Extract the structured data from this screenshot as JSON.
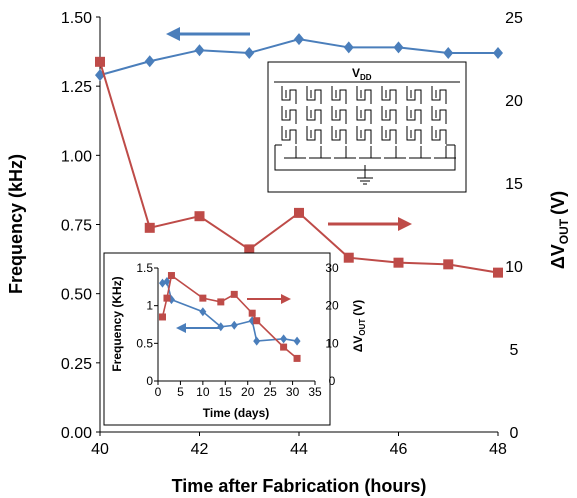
{
  "chart_data": [
    {
      "type": "line",
      "xlabel": "Time after Fabrication (hours)",
      "ylabel": "Frequency (kHz)",
      "y2label": "ΔV",
      "y2label_sub": "OUT",
      "y2label_unit": "(V)",
      "xlim": [
        40,
        48
      ],
      "ylim": [
        0,
        1.5
      ],
      "y2lim": [
        0,
        25
      ],
      "xticks": [
        "40",
        "42",
        "44",
        "46",
        "48"
      ],
      "yticks": [
        "0.00",
        "0.25",
        "0.50",
        "0.75",
        "1.00",
        "1.25",
        "1.50"
      ],
      "y2ticks": [
        "0",
        "5",
        "10",
        "15",
        "20",
        "25"
      ],
      "series": [
        {
          "axis": "left",
          "color": "#4a7ebb",
          "marker": "diamond",
          "x": [
            40,
            41,
            42,
            43,
            44,
            45,
            46,
            47,
            48
          ],
          "values": [
            1.29,
            1.34,
            1.38,
            1.37,
            1.42,
            1.39,
            1.39,
            1.37,
            1.37
          ]
        },
        {
          "axis": "right",
          "color": "#be4b48",
          "marker": "square",
          "x": [
            40,
            41,
            42,
            43,
            44,
            45,
            46,
            47,
            48
          ],
          "values": [
            22.3,
            12.3,
            13.0,
            11.0,
            13.2,
            10.5,
            10.2,
            10.1,
            9.6
          ]
        }
      ],
      "annotations": [
        {
          "type": "arrow",
          "direction": "left",
          "color": "#4a7ebb",
          "meaning": "frequency series uses left axis"
        },
        {
          "type": "arrow",
          "direction": "right",
          "color": "#be4b48",
          "meaning": "voltage series uses right axis"
        }
      ],
      "inset_schematic": {
        "label": "V",
        "label_sub": "DD"
      }
    },
    {
      "type": "line",
      "inset": true,
      "xlabel": "Time (days)",
      "ylabel": "Frequency (KHz)",
      "y2label": "ΔV",
      "y2label_sub": "OUT",
      "y2label_unit": "(V)",
      "xlim": [
        0,
        35
      ],
      "ylim": [
        0,
        1.5
      ],
      "y2lim": [
        0,
        30
      ],
      "xticks": [
        "0",
        "5",
        "10",
        "15",
        "20",
        "25",
        "30",
        "35"
      ],
      "yticks": [
        "0",
        "0.5",
        "1",
        "1.5"
      ],
      "y2ticks": [
        "0",
        "10",
        "20",
        "30"
      ],
      "series": [
        {
          "axis": "left",
          "color": "#4a7ebb",
          "marker": "diamond",
          "x": [
            1,
            2,
            3,
            10,
            14,
            17,
            21,
            22,
            28,
            31
          ],
          "values": [
            1.3,
            1.32,
            1.08,
            0.92,
            0.72,
            0.74,
            0.8,
            0.53,
            0.56,
            0.53
          ]
        },
        {
          "axis": "right",
          "color": "#be4b48",
          "marker": "square",
          "x": [
            1,
            2,
            3,
            10,
            14,
            17,
            21,
            22,
            28,
            31
          ],
          "values": [
            17,
            22,
            28,
            22,
            21,
            23,
            18,
            16,
            9,
            6
          ]
        }
      ]
    }
  ]
}
